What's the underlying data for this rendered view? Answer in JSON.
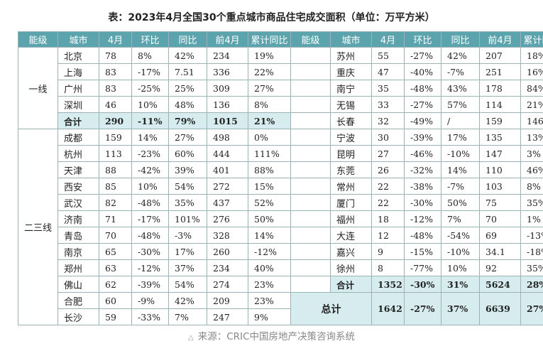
{
  "title": "表：2023年4月全国30个重点城市商品住宅成交面积（单位：万平方米）",
  "headers": [
    "能级",
    "城市",
    "4月",
    "环比",
    "同比",
    "前4月",
    "累计同比",
    "能级",
    "城市",
    "4月",
    "环比",
    "同比",
    "前4月",
    "累计同比"
  ],
  "left": {
    "tier1_label": "一线",
    "tier23_label": "二三线",
    "tier1_rows": [
      [
        "北京",
        "78",
        "8%",
        "42%",
        "234",
        "19%"
      ],
      [
        "上海",
        "83",
        "-17%",
        "7.51",
        "336",
        "22%"
      ],
      [
        "广州",
        "83",
        "-25%",
        "25%",
        "309",
        "27%"
      ],
      [
        "深圳",
        "46",
        "10%",
        "48%",
        "136",
        "8%"
      ]
    ],
    "tier1_total": [
      "合计",
      "290",
      "-11%",
      "79%",
      "1015",
      "21%"
    ],
    "tier23_rows": [
      [
        "成都",
        "159",
        "14%",
        "27%",
        "498",
        "0%"
      ],
      [
        "杭州",
        "113",
        "-23%",
        "60%",
        "444",
        "111%"
      ],
      [
        "天津",
        "88",
        "-42%",
        "39%",
        "401",
        "88%"
      ],
      [
        "西安",
        "85",
        "10%",
        "54%",
        "272",
        "15%"
      ],
      [
        "武汉",
        "82",
        "-48%",
        "35%",
        "437",
        "52%"
      ],
      [
        "济南",
        "71",
        "-17%",
        "101%",
        "276",
        "50%"
      ],
      [
        "青岛",
        "70",
        "-48%",
        "-3%",
        "328",
        "14%"
      ],
      [
        "南京",
        "65",
        "-30%",
        "17%",
        "260",
        "-12%"
      ],
      [
        "郑州",
        "63",
        "-12%",
        "37%",
        "234",
        "40%"
      ],
      [
        "佛山",
        "62",
        "-39%",
        "54%",
        "274",
        "23%"
      ],
      [
        "合肥",
        "60",
        "-9%",
        "42%",
        "209",
        "23%"
      ],
      [
        "长沙",
        "59",
        "-33%",
        "7%",
        "247",
        "9%"
      ]
    ]
  },
  "right": {
    "rows": [
      [
        "苏州",
        "55",
        "-27%",
        "42%",
        "207",
        "18%"
      ],
      [
        "重庆",
        "47",
        "-40%",
        "-7%",
        "251",
        "16%"
      ],
      [
        "南宁",
        "35",
        "-48%",
        "43%",
        "178",
        "84%"
      ],
      [
        "无锡",
        "33",
        "-27%",
        "57%",
        "114",
        "21%"
      ],
      [
        "长春",
        "32",
        "-49%",
        "/",
        "159",
        "146%"
      ],
      [
        "宁波",
        "30",
        "-39%",
        "17%",
        "135",
        "13%"
      ],
      [
        "昆明",
        "27",
        "-46%",
        "-10%",
        "147",
        "3%"
      ],
      [
        "东莞",
        "26",
        "-32%",
        "14%",
        "110",
        "46%"
      ],
      [
        "常州",
        "22",
        "-38%",
        "-7%",
        "103",
        "8%"
      ],
      [
        "厦门",
        "22",
        "-30%",
        "50%",
        "75",
        "35%"
      ],
      [
        "福州",
        "18",
        "-12%",
        "7%",
        "70",
        "1%"
      ],
      [
        "大连",
        "12",
        "-48%",
        "-54%",
        "69",
        "-13%"
      ],
      [
        "嘉兴",
        "9",
        "-15%",
        "-10%",
        "34.1",
        "-18%"
      ],
      [
        "徐州",
        "8",
        "-77%",
        "10%",
        "92",
        "35%"
      ]
    ],
    "total": [
      "合计",
      "1352",
      "-30%",
      "31%",
      "5624",
      "28%"
    ],
    "grand_label": "总计",
    "grand": [
      "1642",
      "-27%",
      "37%",
      "6639",
      "27%"
    ]
  },
  "source": "来源：CRIC中国房地产决策咨询系统"
}
